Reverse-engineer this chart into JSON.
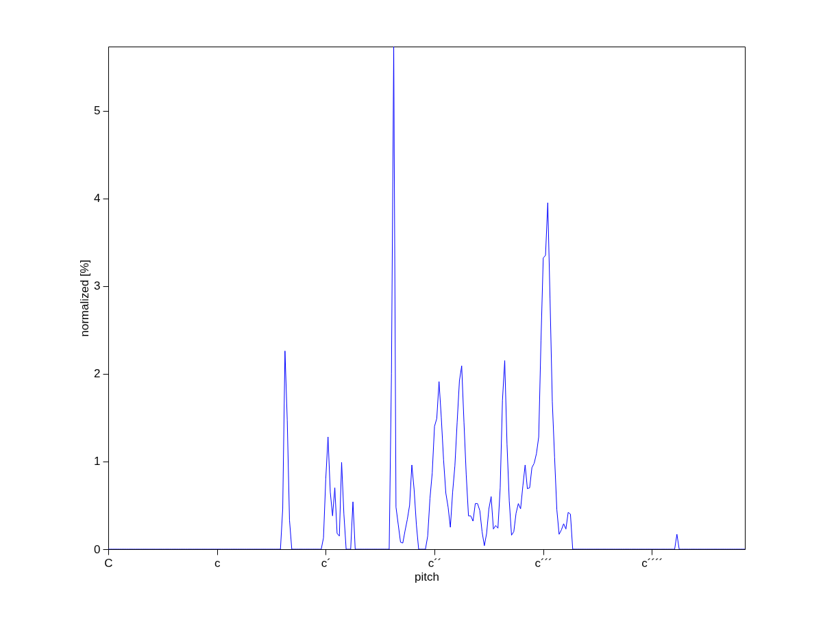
{
  "chart_data": {
    "type": "line",
    "xlabel": "pitch",
    "ylabel": "normalized [%]",
    "categories": [
      "C",
      null,
      null,
      null,
      null,
      null,
      null,
      null,
      null,
      null,
      null,
      null,
      null,
      null,
      null,
      null,
      null,
      null,
      null,
      null,
      null,
      null,
      null,
      null,
      null,
      null,
      null,
      null,
      null,
      null,
      null,
      null,
      null,
      null,
      null,
      null,
      null,
      null,
      null,
      null,
      null,
      null,
      null,
      null,
      null,
      null,
      null,
      null,
      "c",
      null,
      null,
      null,
      null,
      null,
      null,
      null,
      null,
      null,
      null,
      null,
      null,
      null,
      null,
      null,
      null,
      null,
      null,
      null,
      null,
      null,
      null,
      null,
      null,
      null,
      null,
      null,
      null,
      null,
      null,
      null,
      null,
      null,
      null,
      null,
      null,
      null,
      null,
      null,
      null,
      null,
      null,
      null,
      null,
      null,
      null,
      null,
      "c´",
      null,
      null,
      null,
      null,
      null,
      null,
      null,
      null,
      null,
      null,
      null,
      null,
      null,
      null,
      null,
      null,
      null,
      null,
      null,
      null,
      null,
      null,
      null,
      null,
      null,
      null,
      null,
      null,
      null,
      null,
      null,
      null,
      null,
      null,
      null,
      null,
      null,
      null,
      null,
      null,
      null,
      null,
      null,
      null,
      null,
      null,
      null,
      "c´´",
      null,
      null,
      null,
      null,
      null,
      null,
      null,
      null,
      null,
      null,
      null,
      null,
      null,
      null,
      null,
      null,
      null,
      null,
      null,
      null,
      null,
      null,
      null,
      null,
      null,
      null,
      null,
      null,
      null,
      null,
      null,
      null,
      null,
      null,
      null,
      null,
      null,
      null,
      null,
      null,
      null,
      null,
      null,
      null,
      null,
      null,
      null,
      "c´´´",
      null,
      null,
      null,
      null,
      null,
      null,
      null,
      null,
      null,
      null,
      null,
      null,
      null,
      null,
      null,
      null,
      null,
      null,
      null,
      null,
      null,
      null,
      null,
      null,
      null,
      null,
      null,
      null,
      null,
      null,
      null,
      null,
      null,
      null,
      null,
      null,
      null,
      null,
      null,
      null,
      null,
      null,
      null,
      null,
      null,
      null,
      null,
      "c´´´´",
      null,
      null,
      null,
      null,
      null,
      null,
      null,
      null,
      null,
      null,
      null,
      null,
      null,
      null,
      null,
      null,
      null,
      null,
      null,
      null,
      null,
      null,
      null,
      null,
      null,
      null,
      null,
      null,
      null,
      null,
      null,
      null,
      null,
      null,
      null,
      null,
      null,
      null,
      null,
      null,
      null
    ],
    "ylim": [
      0,
      5.73
    ],
    "yticks": [
      0,
      1,
      2,
      3,
      4,
      5
    ],
    "grid": false,
    "marker": "none",
    "line_style": "solid",
    "series": [
      {
        "color": "#0000ff",
        "values": [
          0,
          0,
          0,
          0,
          0,
          0,
          0,
          0,
          0,
          0,
          0,
          0,
          0,
          0,
          0,
          0,
          0,
          0,
          0,
          0,
          0,
          0,
          0,
          0,
          0,
          0,
          0,
          0,
          0,
          0,
          0,
          0,
          0,
          0,
          0,
          0,
          0,
          0,
          0,
          0,
          0,
          0,
          0,
          0,
          0,
          0,
          0,
          0,
          0,
          0,
          0,
          0,
          0,
          0,
          0,
          0,
          0,
          0,
          0,
          0,
          0,
          0,
          0,
          0,
          0,
          0,
          0,
          0,
          0,
          0,
          0,
          0,
          0,
          0,
          0,
          0,
          0,
          0.46,
          2.26,
          1.47,
          0.33,
          0,
          0,
          0,
          0,
          0,
          0,
          0,
          0,
          0,
          0,
          0,
          0,
          0,
          0,
          0.13,
          0.8,
          1.28,
          0.65,
          0.38,
          0.7,
          0.18,
          0.15,
          0.99,
          0.4,
          0,
          0,
          0,
          0.54,
          0,
          0,
          0,
          0,
          0,
          0,
          0,
          0,
          0,
          0,
          0,
          0,
          0,
          0,
          0,
          0,
          2.0,
          5.73,
          0.48,
          0.28,
          0.08,
          0.07,
          0.21,
          0.34,
          0.5,
          0.96,
          0.68,
          0.28,
          0,
          0,
          0,
          0,
          0.15,
          0.58,
          0.87,
          1.4,
          1.49,
          1.91,
          1.5,
          1.02,
          0.64,
          0.48,
          0.25,
          0.65,
          0.95,
          1.45,
          1.92,
          2.09,
          1.45,
          0.85,
          0.38,
          0.38,
          0.32,
          0.52,
          0.52,
          0.44,
          0.2,
          0.04,
          0.18,
          0.46,
          0.6,
          0.23,
          0.27,
          0.24,
          0.7,
          1.7,
          2.15,
          1.2,
          0.55,
          0.16,
          0.2,
          0.41,
          0.52,
          0.46,
          0.72,
          0.96,
          0.69,
          0.7,
          0.93,
          0.98,
          1.09,
          1.28,
          2.38,
          3.32,
          3.35,
          3.95,
          2.85,
          1.68,
          1.05,
          0.45,
          0.17,
          0.22,
          0.29,
          0.23,
          0.42,
          0.4,
          0,
          0,
          0,
          0,
          0,
          0,
          0,
          0,
          0,
          0,
          0,
          0,
          0,
          0,
          0,
          0,
          0,
          0,
          0,
          0,
          0,
          0,
          0,
          0,
          0,
          0,
          0,
          0,
          0,
          0,
          0,
          0,
          0,
          0,
          0,
          0,
          0,
          0,
          0,
          0,
          0,
          0,
          0,
          0,
          0,
          0,
          0.17,
          0,
          0,
          0,
          0,
          0,
          0,
          0,
          0,
          0,
          0,
          0,
          0,
          0,
          0,
          0,
          0,
          0,
          0,
          0,
          0,
          0,
          0,
          0,
          0,
          0,
          0,
          0,
          0,
          0,
          0
        ]
      }
    ]
  }
}
